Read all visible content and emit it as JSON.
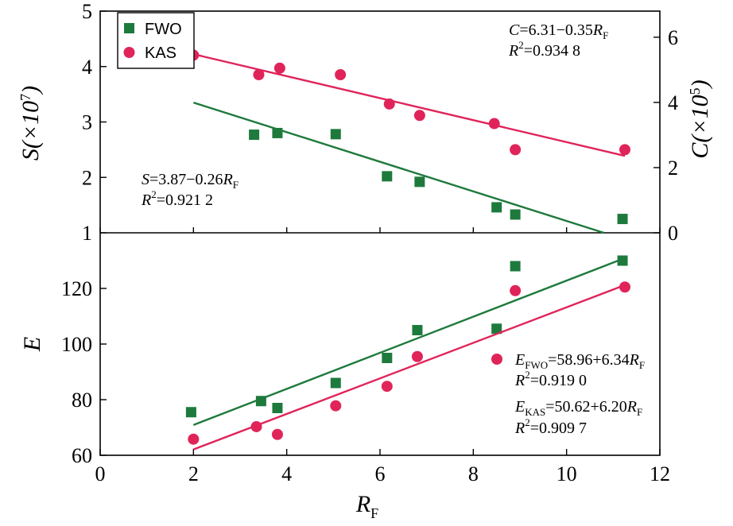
{
  "chart_data": [
    {
      "panel": "top",
      "type": "scatter",
      "xlabel": "R",
      "xlabel_sub": "F",
      "xlim": [
        0,
        12
      ],
      "xticks": [
        0,
        2,
        4,
        6,
        8,
        10,
        12
      ],
      "y_left": {
        "label_main": "S(×10",
        "label_sup": "7",
        "label_end": ")",
        "lim": [
          1,
          5
        ],
        "ticks": [
          1,
          2,
          3,
          4,
          5
        ]
      },
      "y_right": {
        "label_main": "C(×10",
        "label_sup": "5",
        "label_end": ")",
        "lim": [
          0,
          6.8
        ],
        "ticks": [
          0,
          2,
          4,
          6
        ]
      },
      "legend": [
        {
          "label": "FWO",
          "marker": "square",
          "color": "#1e7a3c"
        },
        {
          "label": "KAS",
          "marker": "circle",
          "color": "#e0245a"
        }
      ],
      "series": [
        {
          "name": "FWO",
          "axis": "left",
          "color": "#1e7a3c",
          "marker": "square",
          "x": [
            3.3,
            3.8,
            5.05,
            6.15,
            6.85,
            8.5,
            8.9,
            11.2
          ],
          "y": [
            2.77,
            2.8,
            2.78,
            2.02,
            1.92,
            1.46,
            1.33,
            1.25
          ],
          "fit": {
            "x": [
              2.0,
              10.8
            ],
            "y": [
              3.35,
              1.0
            ]
          }
        },
        {
          "name": "KAS",
          "axis": "right",
          "color": "#e0245a",
          "marker": "circle",
          "x": [
            2.0,
            3.4,
            3.85,
            5.15,
            6.2,
            6.85,
            8.45,
            8.9,
            11.25
          ],
          "y": [
            5.45,
            4.85,
            5.05,
            4.85,
            3.95,
            3.6,
            3.35,
            2.55,
            2.55
          ],
          "fit": {
            "x": [
              2.0,
              11.25
            ],
            "y": [
              5.48,
              2.36
            ]
          }
        }
      ],
      "annotations": [
        {
          "id": "c_eq",
          "line1": [
            "C",
            "=6.31−0.35",
            "R",
            "F"
          ],
          "line2": [
            "R",
            "2",
            "=0.934 8"
          ]
        },
        {
          "id": "s_eq",
          "line1": [
            "S",
            "=3.87−0.26",
            "R",
            "F"
          ],
          "line2": [
            "R",
            "2",
            "=0.921 2"
          ]
        }
      ]
    },
    {
      "panel": "bottom",
      "type": "scatter",
      "xlabel": "R",
      "xlabel_sub": "F",
      "xlim": [
        0,
        12
      ],
      "xticks": [
        0,
        2,
        4,
        6,
        8,
        10,
        12
      ],
      "xtick_labels": [
        "0",
        "2",
        "4",
        "6",
        "8",
        "10",
        "12"
      ],
      "ylabel": "E",
      "ylim": [
        60,
        140
      ],
      "yticks": [
        60,
        80,
        100,
        120
      ],
      "series": [
        {
          "name": "FWO",
          "color": "#1e7a3c",
          "marker": "square",
          "x": [
            1.95,
            3.45,
            3.8,
            5.05,
            6.15,
            6.8,
            8.5,
            8.9,
            11.2
          ],
          "y": [
            75.5,
            79.5,
            77,
            86,
            95,
            105,
            105.5,
            128,
            130
          ],
          "fit": {
            "x": [
              2.0,
              11.2
            ],
            "y": [
              70.9,
              130.6
            ]
          }
        },
        {
          "name": "KAS",
          "color": "#e0245a",
          "marker": "circle",
          "x": [
            2.0,
            3.35,
            3.8,
            5.05,
            6.15,
            6.8,
            8.9,
            11.25
          ],
          "y": [
            65.8,
            70.3,
            67.5,
            77.8,
            84.8,
            95.5,
            119.2,
            120.5
          ],
          "fit": {
            "x": [
              2.0,
              11.25
            ],
            "y": [
              62.1,
              121.2
            ]
          }
        }
      ],
      "annotations": [
        {
          "id": "efwo_eq",
          "line1": [
            "E",
            "FWO",
            "=58.96+6.34",
            "R",
            "F"
          ],
          "line2": [
            "R",
            "2",
            "=0.919 0"
          ]
        },
        {
          "id": "ekas_eq",
          "line1": [
            "E",
            "KAS",
            "=50.62+6.20",
            "R",
            "F"
          ],
          "line2": [
            "R",
            "2",
            "=0.909 7"
          ]
        }
      ]
    }
  ]
}
